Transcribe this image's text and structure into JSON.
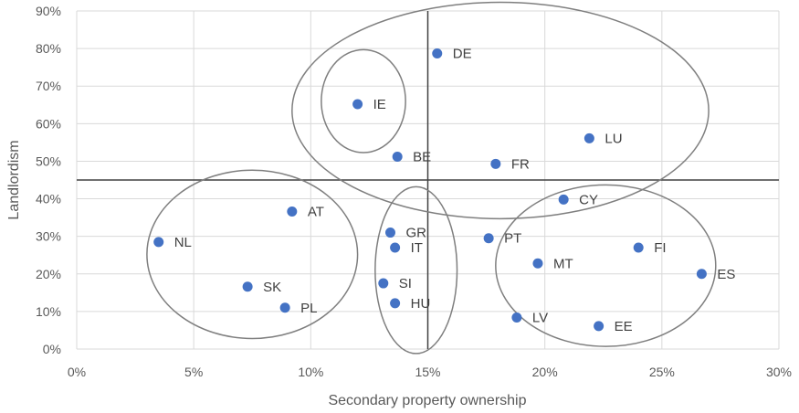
{
  "chart_data": {
    "type": "scatter",
    "xlabel": "Secondary property ownership",
    "ylabel": "Landlordism",
    "xlim": [
      0,
      0.3
    ],
    "ylim": [
      0,
      0.9
    ],
    "x_ticks": [
      "0%",
      "5%",
      "10%",
      "15%",
      "20%",
      "25%",
      "30%"
    ],
    "y_ticks": [
      "0%",
      "10%",
      "20%",
      "30%",
      "40%",
      "50%",
      "60%",
      "70%",
      "80%",
      "90%"
    ],
    "grid": "vertical-and-horizontal",
    "marker_color": "#4472c4",
    "reference_lines": {
      "x": 0.15,
      "y": 0.45
    },
    "points": [
      {
        "label": "DE",
        "x": 0.154,
        "y": 0.787
      },
      {
        "label": "IE",
        "x": 0.12,
        "y": 0.652
      },
      {
        "label": "LU",
        "x": 0.219,
        "y": 0.561
      },
      {
        "label": "BE",
        "x": 0.137,
        "y": 0.512
      },
      {
        "label": "FR",
        "x": 0.179,
        "y": 0.493
      },
      {
        "label": "CY",
        "x": 0.208,
        "y": 0.398
      },
      {
        "label": "AT",
        "x": 0.092,
        "y": 0.366
      },
      {
        "label": "GR",
        "x": 0.134,
        "y": 0.31
      },
      {
        "label": "PT",
        "x": 0.176,
        "y": 0.295
      },
      {
        "label": "NL",
        "x": 0.035,
        "y": 0.285
      },
      {
        "label": "IT",
        "x": 0.136,
        "y": 0.27
      },
      {
        "label": "FI",
        "x": 0.24,
        "y": 0.27
      },
      {
        "label": "MT",
        "x": 0.197,
        "y": 0.228
      },
      {
        "label": "ES",
        "x": 0.267,
        "y": 0.2
      },
      {
        "label": "SI",
        "x": 0.131,
        "y": 0.175
      },
      {
        "label": "SK",
        "x": 0.073,
        "y": 0.166
      },
      {
        "label": "HU",
        "x": 0.136,
        "y": 0.122
      },
      {
        "label": "PL",
        "x": 0.089,
        "y": 0.11
      },
      {
        "label": "LV",
        "x": 0.188,
        "y": 0.084
      },
      {
        "label": "EE",
        "x": 0.223,
        "y": 0.061
      }
    ],
    "clusters": [
      {
        "cx": 0.1225,
        "cy": 0.66,
        "rx": 0.018,
        "ry": 0.137
      },
      {
        "cx": 0.181,
        "cy": 0.635,
        "rx": 0.089,
        "ry": 0.288
      },
      {
        "cx": 0.075,
        "cy": 0.252,
        "rx": 0.045,
        "ry": 0.224
      },
      {
        "cx": 0.145,
        "cy": 0.21,
        "rx": 0.0175,
        "ry": 0.222
      },
      {
        "cx": 0.226,
        "cy": 0.222,
        "rx": 0.047,
        "ry": 0.215
      }
    ]
  }
}
